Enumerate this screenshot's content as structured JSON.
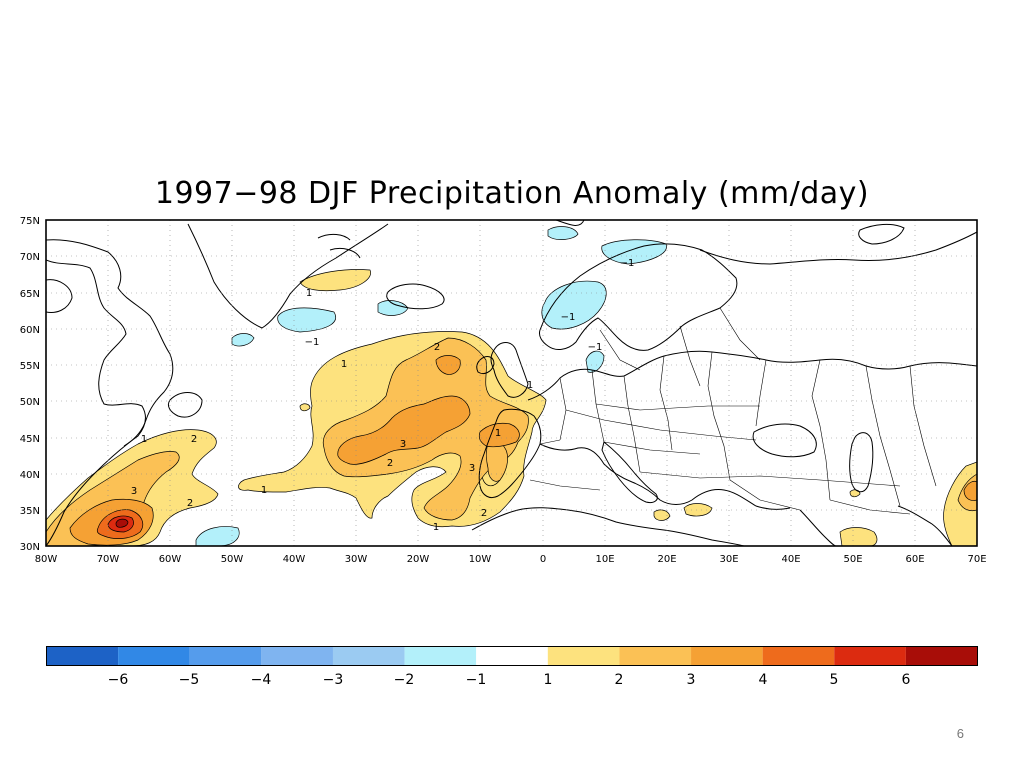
{
  "title": "1997−98 DJF Precipitation Anomaly (mm/day)",
  "map": {
    "lat_labels": [
      "75N",
      "70N",
      "65N",
      "60N",
      "55N",
      "50N",
      "45N",
      "40N",
      "35N",
      "30N"
    ],
    "lon_labels": [
      "80W",
      "70W",
      "60W",
      "50W",
      "40W",
      "30W",
      "20W",
      "10W",
      "0",
      "10E",
      "20E",
      "30E",
      "40E",
      "50E",
      "60E",
      "70E"
    ],
    "contour_labels": [
      "1",
      "1",
      "2",
      "3",
      "2",
      "3",
      "2",
      "3",
      "1",
      "2",
      "1",
      "1",
      "1",
      "−1",
      "−1",
      "−1",
      "−1",
      "1",
      "2"
    ],
    "colors": {
      "neg1": "#b3f0fa",
      "pos1": "#fde27e",
      "pos2": "#fbc155",
      "pos3": "#f5a134",
      "pos4": "#ee6b1c",
      "pos5": "#dc2b10",
      "pos6": "#a80d08"
    }
  },
  "colorbar": {
    "labels": [
      "−6",
      "−5",
      "−4",
      "−3",
      "−2",
      "−1",
      "1",
      "2",
      "3",
      "4",
      "5",
      "6"
    ],
    "colors": [
      "#1d62c6",
      "#3188e6",
      "#559cec",
      "#7fb4f0",
      "#9bcbf2",
      "#b3f0fa",
      "#ffffff",
      "#fde27e",
      "#fbc155",
      "#f5a134",
      "#ee6b1c",
      "#dc2b10",
      "#a80d08"
    ]
  },
  "page_number": "6"
}
